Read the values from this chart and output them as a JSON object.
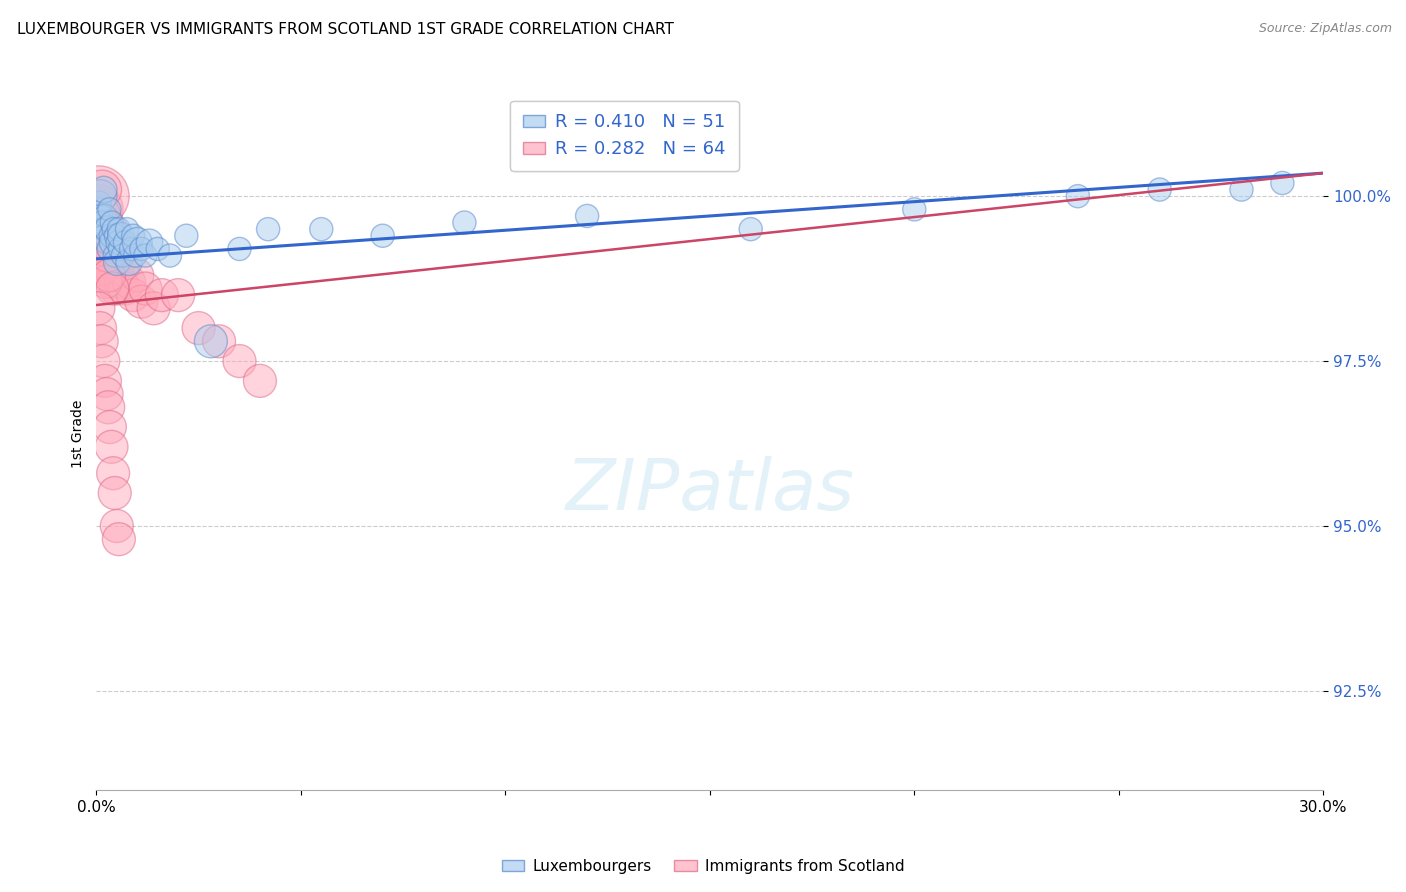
{
  "title": "LUXEMBOURGER VS IMMIGRANTS FROM SCOTLAND 1ST GRADE CORRELATION CHART",
  "source": "Source: ZipAtlas.com",
  "ylabel": "1st Grade",
  "y_ticks": [
    92.5,
    95.0,
    97.5,
    100.0
  ],
  "y_tick_labels": [
    "92.5%",
    "95.0%",
    "97.5%",
    "100.0%"
  ],
  "x_min": 0.0,
  "x_max": 30.0,
  "y_min": 91.0,
  "y_max": 101.8,
  "blue_color": "#AACCEE",
  "pink_color": "#FFAABB",
  "blue_edge_color": "#5588CC",
  "pink_edge_color": "#DD6688",
  "blue_line_color": "#3366CC",
  "pink_line_color": "#CC4466",
  "legend_blue_label": "R = 0.410   N = 51",
  "legend_pink_label": "R = 0.282   N = 64",
  "legend1_label": "Luxembourgers",
  "legend2_label": "Immigrants from Scotland",
  "blue_trend_x0": 0.0,
  "blue_trend_y0": 99.05,
  "blue_trend_x1": 30.0,
  "blue_trend_y1": 100.35,
  "pink_trend_x0": 0.0,
  "pink_trend_y0": 98.35,
  "pink_trend_x1": 30.0,
  "pink_trend_y1": 100.35,
  "blue_scatter_x": [
    0.05,
    0.08,
    0.1,
    0.12,
    0.14,
    0.16,
    0.18,
    0.2,
    0.22,
    0.25,
    0.28,
    0.3,
    0.32,
    0.35,
    0.38,
    0.4,
    0.42,
    0.45,
    0.48,
    0.5,
    0.52,
    0.55,
    0.58,
    0.6,
    0.65,
    0.7,
    0.75,
    0.8,
    0.85,
    0.9,
    0.95,
    1.0,
    1.1,
    1.2,
    1.3,
    1.5,
    1.8,
    2.2,
    2.8,
    3.5,
    4.2,
    5.5,
    7.0,
    9.0,
    12.0,
    16.0,
    20.0,
    24.0,
    26.0,
    28.0,
    29.0
  ],
  "blue_scatter_y": [
    99.8,
    99.9,
    100.0,
    99.7,
    99.6,
    99.5,
    100.1,
    99.4,
    99.7,
    99.3,
    99.5,
    99.2,
    99.8,
    99.4,
    99.6,
    99.3,
    99.5,
    99.1,
    99.4,
    99.0,
    99.3,
    99.5,
    99.2,
    99.4,
    99.1,
    99.3,
    99.5,
    99.0,
    99.2,
    99.4,
    99.1,
    99.3,
    99.2,
    99.1,
    99.3,
    99.2,
    99.1,
    99.4,
    97.8,
    99.2,
    99.5,
    99.5,
    99.4,
    99.6,
    99.7,
    99.5,
    99.8,
    100.0,
    100.1,
    100.1,
    100.2
  ],
  "blue_scatter_ms": [
    5,
    5,
    8,
    5,
    5,
    5,
    6,
    5,
    5,
    5,
    6,
    5,
    5,
    5,
    5,
    6,
    5,
    5,
    5,
    6,
    5,
    5,
    5,
    6,
    5,
    5,
    5,
    6,
    5,
    5,
    5,
    7,
    5,
    5,
    6,
    5,
    5,
    5,
    8,
    5,
    5,
    5,
    5,
    5,
    5,
    5,
    5,
    5,
    5,
    5,
    5
  ],
  "pink_scatter_x": [
    0.02,
    0.04,
    0.06,
    0.08,
    0.1,
    0.12,
    0.14,
    0.16,
    0.18,
    0.2,
    0.22,
    0.24,
    0.26,
    0.28,
    0.3,
    0.32,
    0.34,
    0.36,
    0.38,
    0.4,
    0.42,
    0.44,
    0.46,
    0.48,
    0.5,
    0.55,
    0.6,
    0.65,
    0.7,
    0.8,
    0.9,
    1.0,
    1.1,
    1.2,
    1.4,
    1.6,
    2.0,
    2.5,
    3.0,
    3.5,
    4.0,
    0.03,
    0.07,
    0.11,
    0.15,
    0.19,
    0.23,
    0.27,
    0.31,
    0.35,
    0.39,
    0.05,
    0.09,
    0.13,
    0.17,
    0.21,
    0.25,
    0.29,
    0.33,
    0.37,
    0.41,
    0.45,
    0.5,
    0.55
  ],
  "pink_scatter_y": [
    99.5,
    99.8,
    100.0,
    99.6,
    99.3,
    99.7,
    100.1,
    99.4,
    99.2,
    99.6,
    99.0,
    99.3,
    99.5,
    98.8,
    99.1,
    99.4,
    98.9,
    99.2,
    98.7,
    99.0,
    99.3,
    98.8,
    99.1,
    98.6,
    98.9,
    99.1,
    98.7,
    98.9,
    98.6,
    98.7,
    98.5,
    98.8,
    98.4,
    98.6,
    98.3,
    98.5,
    98.5,
    98.0,
    97.8,
    97.5,
    97.2,
    99.0,
    99.4,
    99.2,
    98.9,
    99.3,
    98.7,
    99.1,
    98.8,
    99.5,
    98.6,
    98.3,
    98.0,
    97.8,
    97.5,
    97.2,
    97.0,
    96.8,
    96.5,
    96.2,
    95.8,
    95.5,
    95.0,
    94.8
  ],
  "pink_scatter_ms": [
    12,
    14,
    18,
    10,
    8,
    10,
    10,
    8,
    10,
    8,
    8,
    8,
    8,
    8,
    8,
    8,
    8,
    8,
    8,
    8,
    8,
    8,
    8,
    8,
    8,
    8,
    8,
    8,
    8,
    8,
    8,
    8,
    8,
    8,
    8,
    8,
    8,
    8,
    8,
    8,
    8,
    8,
    8,
    8,
    8,
    8,
    8,
    8,
    8,
    8,
    8,
    8,
    8,
    8,
    8,
    8,
    8,
    8,
    8,
    8,
    8,
    8,
    8,
    8
  ]
}
